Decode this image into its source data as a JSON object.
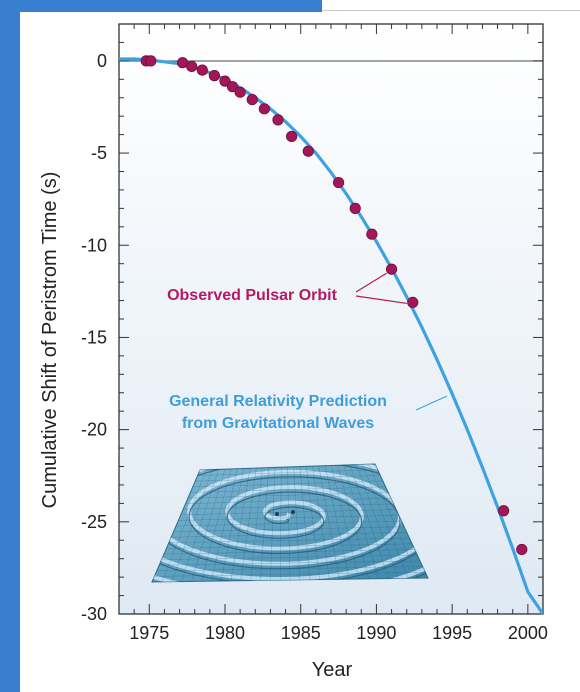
{
  "chart_data": {
    "type": "scatter",
    "xlabel": "Year",
    "ylabel": "Cumulative Shift of Peristrom Time (s)",
    "xlim": [
      1973,
      2001
    ],
    "ylim": [
      -30,
      2
    ],
    "x_ticks": [
      "1975",
      "1980",
      "1985",
      "1990",
      "1995",
      "2000"
    ],
    "y_ticks": [
      "0",
      "-5",
      "-10",
      "-15",
      "-20",
      "-25",
      "-30"
    ],
    "grid": false,
    "series": [
      {
        "name": "Observed Pulsar Orbit",
        "kind": "points",
        "color": "#a3175a",
        "x": [
          1974.8,
          1975.1,
          1977.2,
          1977.8,
          1978.5,
          1979.3,
          1980.0,
          1980.5,
          1981.0,
          1981.8,
          1982.6,
          1983.5,
          1984.4,
          1985.5,
          1987.5,
          1988.6,
          1989.7,
          1991.0,
          1992.4,
          1998.4,
          1999.6
        ],
        "y": [
          0.0,
          0.0,
          -0.1,
          -0.3,
          -0.5,
          -0.8,
          -1.1,
          -1.4,
          -1.7,
          -2.1,
          -2.6,
          -3.2,
          -4.1,
          -4.9,
          -6.6,
          -8.0,
          -9.4,
          -11.3,
          -13.1,
          -24.4,
          -26.5
        ]
      },
      {
        "name": "General Relativity Prediction from Gravitational Waves",
        "kind": "curve",
        "color": "#3fa2e0",
        "x": [
          1973,
          1974,
          1975,
          1976,
          1977,
          1978,
          1979,
          1980,
          1981,
          1982,
          1983,
          1984,
          1985,
          1986,
          1987,
          1988,
          1989,
          1990,
          1991,
          1992,
          1993,
          1994,
          1995,
          1996,
          1997,
          1998,
          1999,
          2000,
          2001
        ],
        "y": [
          0.1,
          0.1,
          0.05,
          -0.05,
          -0.15,
          -0.35,
          -0.65,
          -1.0,
          -1.45,
          -2.0,
          -2.6,
          -3.3,
          -4.1,
          -5.0,
          -6.05,
          -7.2,
          -8.45,
          -9.8,
          -11.25,
          -12.8,
          -14.45,
          -16.2,
          -18.05,
          -20.0,
          -22.05,
          -24.2,
          -26.45,
          -28.8,
          -30.0
        ]
      }
    ],
    "annotations": {
      "observed_label": "Observed Pulsar Orbit",
      "gr_label_line1": "General Relativity Prediction",
      "gr_label_line2": "from Gravitational Waves"
    },
    "inset": "gravitational-wave-spiral-mesh"
  },
  "colors": {
    "frame": "#3a7fcf",
    "plot_bg_top": "#ffffff",
    "plot_bg_bottom": "#dfe9f3",
    "observed": "#b5195f",
    "prediction": "#3fa2e0"
  }
}
